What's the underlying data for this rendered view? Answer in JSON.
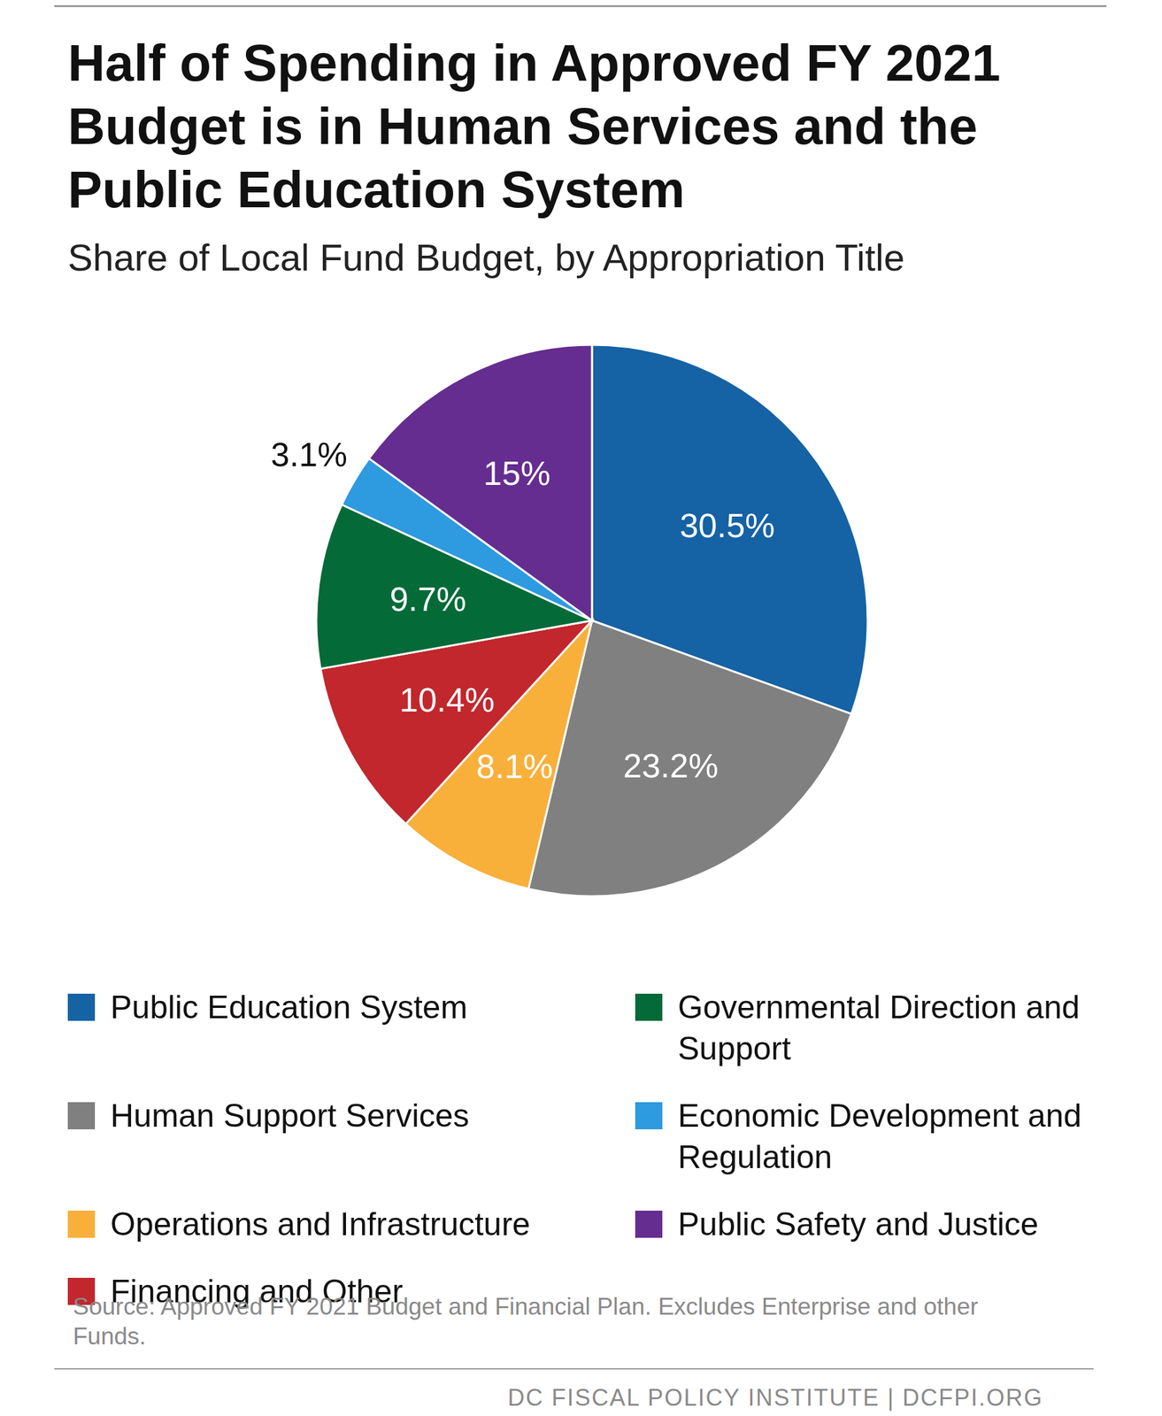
{
  "chart_data": {
    "type": "pie",
    "title": "Half of Spending in Approved FY 2021 Budget is in Human Services and the Public Education System",
    "subtitle": "Share of Local Fund Budget, by Appropriation Title",
    "categories": [
      "Public Education System",
      "Human Support Services",
      "Operations and Infrastructure",
      "Financing and Other",
      "Governmental Direction and Support",
      "Economic Development and Regulation",
      "Public Safety and Justice"
    ],
    "values": [
      30.5,
      23.2,
      8.1,
      10.4,
      9.7,
      3.1,
      15
    ],
    "value_labels": [
      "30.5%",
      "23.2%",
      "8.1%",
      "10.4%",
      "9.7%",
      "3.1%",
      "15%"
    ],
    "colors": [
      "#1562a5",
      "#808080",
      "#f8b03b",
      "#c1272d",
      "#046a38",
      "#2e9ae0",
      "#652d90"
    ],
    "data_labels": true,
    "legend": "bottom",
    "source": "Source: Approved FY 2021 Budget and Financial Plan. Excludes Enterprise and other Funds.",
    "footer": "DC FISCAL POLICY INSTITUTE | DCFPI.ORG"
  }
}
